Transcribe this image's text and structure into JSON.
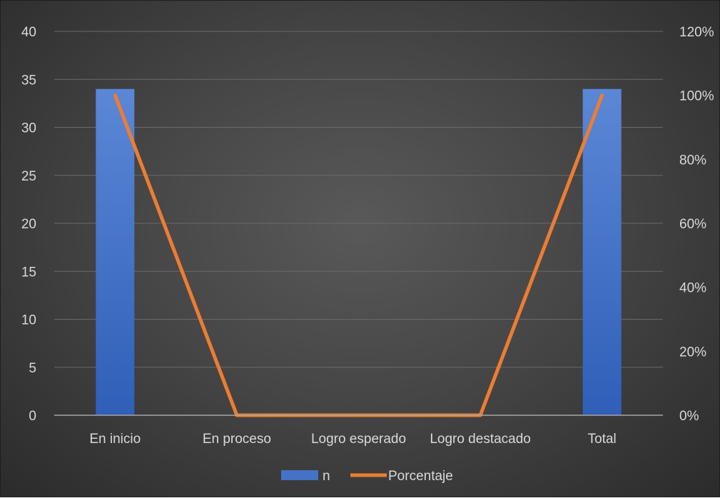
{
  "chart_data": {
    "type": "bar+line",
    "categories": [
      "En inicio",
      "En proceso",
      "Logro esperado",
      "Logro destacado",
      "Total"
    ],
    "series": [
      {
        "name": "n",
        "type": "bar",
        "axis": "left",
        "values": [
          34,
          0,
          0,
          0,
          34
        ]
      },
      {
        "name": "Porcentaje",
        "type": "line",
        "axis": "right",
        "values": [
          1.0,
          0,
          0,
          0,
          1.0
        ]
      }
    ],
    "y_left": {
      "ylim": [
        0,
        40
      ],
      "ticks": [
        "0",
        "5",
        "10",
        "15",
        "20",
        "25",
        "30",
        "35",
        "40"
      ],
      "tick_values": [
        0,
        5,
        10,
        15,
        20,
        25,
        30,
        35,
        40
      ]
    },
    "y_right": {
      "ylim": [
        0,
        1.2
      ],
      "ticks": [
        "0%",
        "20%",
        "40%",
        "60%",
        "80%",
        "100%",
        "120%"
      ],
      "tick_values": [
        0,
        0.2,
        0.4,
        0.6,
        0.8,
        1.0,
        1.2
      ]
    },
    "grid": true,
    "legend": {
      "position": "bottom",
      "items": [
        "n",
        "Porcentaje"
      ]
    },
    "colors": {
      "bar": "#4472c4",
      "line": "#ed7d31"
    }
  }
}
